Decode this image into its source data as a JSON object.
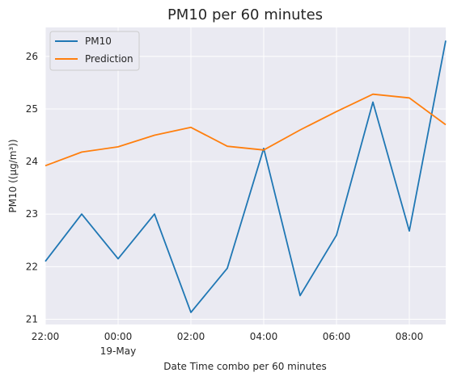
{
  "chart_data": {
    "type": "line",
    "title": "PM10 per 60 minutes",
    "xlabel": "Date Time combo per 60 minutes",
    "ylabel": "PM10 ((µg/m³))",
    "x": [
      "22:00",
      "23:00",
      "00:00",
      "01:00",
      "02:00",
      "03:00",
      "04:00",
      "05:00",
      "06:00",
      "07:00",
      "08:00",
      "09:00"
    ],
    "x_tick_labels": [
      {
        "index": 0,
        "label": "22:00",
        "sublabel": ""
      },
      {
        "index": 2,
        "label": "00:00",
        "sublabel": "19-May"
      },
      {
        "index": 4,
        "label": "02:00",
        "sublabel": ""
      },
      {
        "index": 6,
        "label": "04:00",
        "sublabel": ""
      },
      {
        "index": 8,
        "label": "06:00",
        "sublabel": ""
      },
      {
        "index": 10,
        "label": "08:00",
        "sublabel": ""
      }
    ],
    "y_ticks": [
      21,
      22,
      23,
      24,
      25,
      26
    ],
    "ylim": [
      20.9,
      26.55
    ],
    "grid": true,
    "legend_position": "top-left",
    "series": [
      {
        "name": "PM10",
        "color": "#1f77b4",
        "values": [
          22.1,
          23.0,
          22.15,
          23.0,
          21.13,
          21.97,
          24.25,
          21.45,
          22.6,
          25.13,
          22.68,
          26.3
        ]
      },
      {
        "name": "Prediction",
        "color": "#ff7f0e",
        "values": [
          23.92,
          24.18,
          24.28,
          24.5,
          24.65,
          24.29,
          24.22,
          24.6,
          24.95,
          25.28,
          25.21,
          24.7
        ]
      }
    ]
  }
}
